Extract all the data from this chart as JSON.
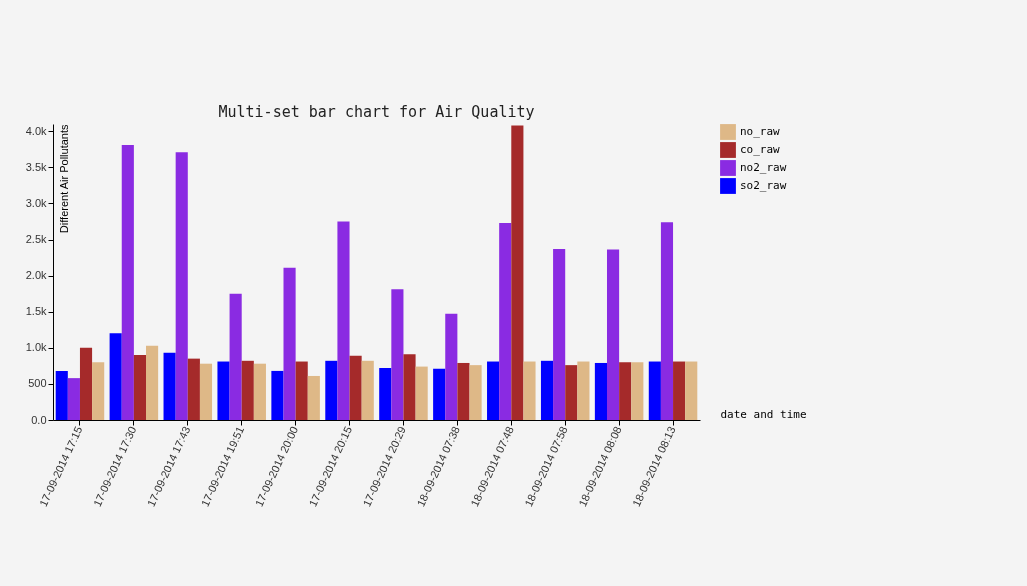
{
  "chart_data": {
    "type": "bar",
    "title": "Multi-set bar chart for Air Quality",
    "xlabel": "date and time",
    "ylabel": "Different Air Pollutants",
    "categories": [
      "17-09-2014 17:15",
      "17-09-2014 17:30",
      "17-09-2014 17:43",
      "17-09-2014 19:51",
      "17-09-2014 20:00",
      "17-09-2014 20:15",
      "17-09-2014 20:29",
      "18-09-2014 07:38",
      "18-09-2014 07:48",
      "18-09-2014 07:58",
      "18-09-2014 08:08",
      "18-09-2014 08:13"
    ],
    "series": [
      {
        "name": "so2_raw",
        "color": "#0000ff",
        "values": [
          680,
          1200,
          930,
          810,
          680,
          820,
          720,
          710,
          810,
          820,
          790,
          810
        ]
      },
      {
        "name": "no2_raw",
        "color": "#8a2be2",
        "values": [
          580,
          3810,
          3710,
          1750,
          2110,
          2750,
          1810,
          1470,
          2730,
          2370,
          2360,
          2740
        ]
      },
      {
        "name": "co_raw",
        "color": "#a52a2a",
        "values": [
          1000,
          900,
          850,
          820,
          810,
          890,
          910,
          790,
          4080,
          760,
          800,
          810
        ]
      },
      {
        "name": "no_raw",
        "color": "#deb887",
        "values": [
          800,
          1030,
          780,
          780,
          610,
          820,
          740,
          760,
          810,
          810,
          800,
          810
        ]
      }
    ],
    "ylim": [
      0,
      4100
    ],
    "yticks": [
      {
        "value": 0,
        "label": "0.0"
      },
      500,
      {
        "value": 1000,
        "label": "1.0k"
      },
      {
        "value": 1500,
        "label": "1.5k"
      },
      {
        "value": 2000,
        "label": "2.0k"
      },
      {
        "value": 2500,
        "label": "2.5k"
      },
      {
        "value": 3000,
        "label": "3.0k"
      },
      {
        "value": 3500,
        "label": "3.5k"
      },
      {
        "value": 4000,
        "label": "4.0k"
      }
    ],
    "grid": false,
    "legend": "top right"
  }
}
